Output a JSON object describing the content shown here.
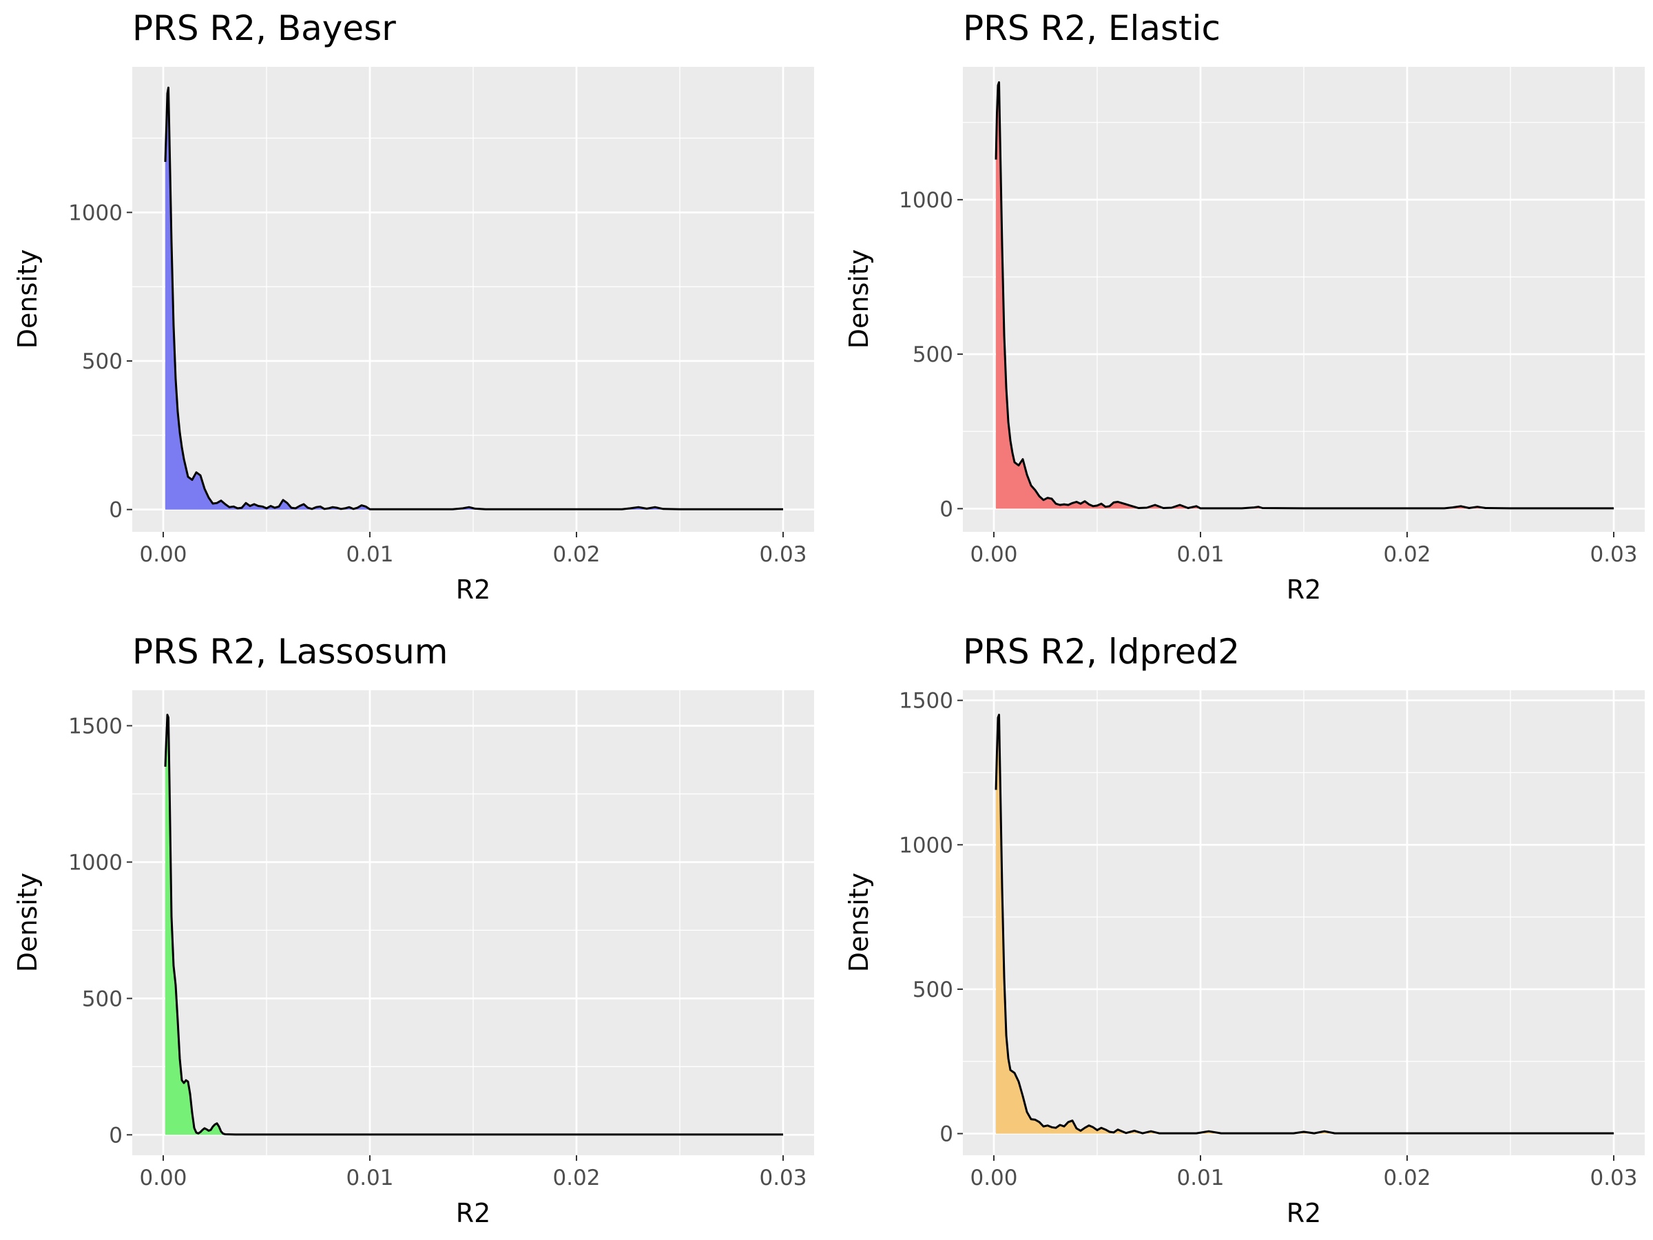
{
  "chart_data": [
    {
      "type": "area",
      "title": "PRS R2, Bayesr",
      "xlabel": "R2",
      "ylabel": "Density",
      "xlim": [
        -0.0015,
        0.0315
      ],
      "ylim": [
        -75,
        1490
      ],
      "xticks": [
        "0.00",
        "0.01",
        "0.02",
        "0.03"
      ],
      "xtick_values": [
        0,
        0.01,
        0.02,
        0.03
      ],
      "yticks": [
        "0",
        "500",
        "1000"
      ],
      "ytick_values": [
        0,
        500,
        1000
      ],
      "grid": true,
      "fill_color": "#7b7bf2",
      "x": [
        0.0001,
        0.00015,
        0.0002,
        0.00025,
        0.0003,
        0.0004,
        0.0005,
        0.0006,
        0.0007,
        0.0008,
        0.0009,
        0.001,
        0.0012,
        0.0014,
        0.0016,
        0.0018,
        0.002,
        0.0022,
        0.0024,
        0.0026,
        0.0028,
        0.003,
        0.0032,
        0.0034,
        0.0036,
        0.0038,
        0.004,
        0.0042,
        0.0044,
        0.0046,
        0.0048,
        0.005,
        0.0052,
        0.0054,
        0.0056,
        0.0058,
        0.006,
        0.0062,
        0.0064,
        0.0066,
        0.0068,
        0.007,
        0.0072,
        0.0074,
        0.0076,
        0.0078,
        0.008,
        0.0082,
        0.0084,
        0.0086,
        0.0088,
        0.009,
        0.0092,
        0.0094,
        0.0096,
        0.0098,
        0.01,
        0.011,
        0.012,
        0.013,
        0.014,
        0.0145,
        0.0148,
        0.0151,
        0.0156,
        0.017,
        0.019,
        0.021,
        0.0222,
        0.0226,
        0.023,
        0.0234,
        0.0238,
        0.0242,
        0.025,
        0.027,
        0.03
      ],
      "y": [
        1170,
        1280,
        1400,
        1420,
        1250,
        900,
        620,
        440,
        330,
        260,
        210,
        170,
        110,
        100,
        125,
        115,
        70,
        40,
        20,
        22,
        30,
        18,
        8,
        10,
        4,
        6,
        22,
        12,
        18,
        12,
        10,
        4,
        12,
        6,
        10,
        32,
        22,
        6,
        4,
        12,
        18,
        6,
        2,
        8,
        10,
        2,
        4,
        8,
        6,
        2,
        4,
        8,
        2,
        6,
        14,
        10,
        1,
        1,
        1,
        1,
        1,
        4,
        8,
        3,
        1,
        1,
        1,
        1,
        1,
        4,
        8,
        3,
        8,
        2,
        1,
        1,
        1
      ]
    },
    {
      "type": "area",
      "title": "PRS R2, Elastic",
      "xlabel": "R2",
      "ylabel": "Density",
      "xlim": [
        -0.0015,
        0.0315
      ],
      "ylim": [
        -75,
        1430
      ],
      "xticks": [
        "0.00",
        "0.01",
        "0.02",
        "0.03"
      ],
      "xtick_values": [
        0,
        0.01,
        0.02,
        0.03
      ],
      "yticks": [
        "0",
        "500",
        "1000"
      ],
      "ytick_values": [
        0,
        500,
        1000
      ],
      "grid": true,
      "fill_color": "#f47a7a",
      "x": [
        0.0001,
        0.00015,
        0.0002,
        0.00025,
        0.0003,
        0.0004,
        0.0005,
        0.0006,
        0.0007,
        0.0008,
        0.0009,
        0.001,
        0.0012,
        0.0014,
        0.0016,
        0.0018,
        0.002,
        0.0022,
        0.0024,
        0.0026,
        0.0028,
        0.003,
        0.0032,
        0.0034,
        0.0036,
        0.0038,
        0.004,
        0.0042,
        0.0044,
        0.0046,
        0.0048,
        0.005,
        0.0052,
        0.0054,
        0.0056,
        0.0058,
        0.006,
        0.0062,
        0.0064,
        0.0066,
        0.0068,
        0.007,
        0.0074,
        0.0078,
        0.0082,
        0.0086,
        0.009,
        0.0094,
        0.0098,
        0.01,
        0.011,
        0.012,
        0.0126,
        0.0128,
        0.013,
        0.015,
        0.018,
        0.021,
        0.0218,
        0.0222,
        0.0226,
        0.023,
        0.0234,
        0.0238,
        0.025,
        0.028,
        0.03
      ],
      "y": [
        1130,
        1280,
        1370,
        1380,
        1200,
        850,
        560,
        390,
        280,
        220,
        180,
        150,
        140,
        160,
        110,
        75,
        60,
        40,
        28,
        35,
        32,
        16,
        12,
        14,
        12,
        18,
        22,
        16,
        24,
        14,
        8,
        10,
        16,
        6,
        8,
        20,
        22,
        18,
        14,
        10,
        6,
        2,
        3,
        12,
        2,
        3,
        12,
        2,
        8,
        1,
        1,
        1,
        4,
        6,
        2,
        1,
        1,
        1,
        1,
        4,
        8,
        2,
        6,
        2,
        1,
        1,
        1
      ]
    },
    {
      "type": "area",
      "title": "PRS R2, Lassosum",
      "xlabel": "R2",
      "ylabel": "Density",
      "xlim": [
        -0.0015,
        0.0315
      ],
      "ylim": [
        -75,
        1630
      ],
      "xticks": [
        "0.00",
        "0.01",
        "0.02",
        "0.03"
      ],
      "xtick_values": [
        0,
        0.01,
        0.02,
        0.03
      ],
      "yticks": [
        "0",
        "500",
        "1000",
        "1500"
      ],
      "ytick_values": [
        0,
        500,
        1000,
        1500
      ],
      "grid": true,
      "fill_color": "#77f077",
      "x": [
        0.0001,
        0.00015,
        0.0002,
        0.00025,
        0.0003,
        0.00035,
        0.0004,
        0.0005,
        0.0006,
        0.0007,
        0.0008,
        0.0009,
        0.001,
        0.0011,
        0.0012,
        0.0013,
        0.0014,
        0.0015,
        0.0016,
        0.0017,
        0.0018,
        0.0019,
        0.002,
        0.0021,
        0.0022,
        0.0023,
        0.0024,
        0.0025,
        0.0026,
        0.0027,
        0.0028,
        0.0029,
        0.003,
        0.0035,
        0.004,
        0.01,
        0.02,
        0.03
      ],
      "y": [
        1350,
        1450,
        1540,
        1530,
        1300,
        1050,
        800,
        620,
        550,
        420,
        280,
        200,
        190,
        200,
        195,
        150,
        80,
        25,
        8,
        5,
        10,
        18,
        24,
        20,
        15,
        18,
        30,
        38,
        42,
        30,
        12,
        4,
        2,
        1,
        1,
        1,
        1,
        1
      ]
    },
    {
      "type": "area",
      "title": "PRS R2, ldpred2",
      "xlabel": "R2",
      "ylabel": "Density",
      "xlim": [
        -0.0015,
        0.0315
      ],
      "ylim": [
        -75,
        1535
      ],
      "xticks": [
        "0.00",
        "0.01",
        "0.02",
        "0.03"
      ],
      "xtick_values": [
        0,
        0.01,
        0.02,
        0.03
      ],
      "yticks": [
        "0",
        "500",
        "1000",
        "1500"
      ],
      "ytick_values": [
        0,
        500,
        1000,
        1500
      ],
      "grid": true,
      "fill_color": "#f5c87a",
      "x": [
        0.0001,
        0.00015,
        0.0002,
        0.00025,
        0.0003,
        0.0004,
        0.0005,
        0.0006,
        0.0007,
        0.0008,
        0.0009,
        0.001,
        0.0012,
        0.0014,
        0.0016,
        0.0018,
        0.002,
        0.0022,
        0.0024,
        0.0026,
        0.0028,
        0.003,
        0.0032,
        0.0034,
        0.0036,
        0.0038,
        0.004,
        0.0042,
        0.0044,
        0.0046,
        0.0048,
        0.005,
        0.0052,
        0.0054,
        0.0056,
        0.0058,
        0.006,
        0.0064,
        0.0068,
        0.0072,
        0.0076,
        0.008,
        0.009,
        0.0098,
        0.0104,
        0.011,
        0.013,
        0.0145,
        0.015,
        0.0155,
        0.016,
        0.0165,
        0.018,
        0.022,
        0.026,
        0.03
      ],
      "y": [
        1190,
        1320,
        1440,
        1450,
        1250,
        850,
        540,
        340,
        260,
        220,
        215,
        210,
        180,
        130,
        75,
        50,
        48,
        40,
        25,
        28,
        22,
        20,
        30,
        25,
        40,
        45,
        18,
        10,
        20,
        28,
        22,
        12,
        20,
        14,
        6,
        4,
        14,
        2,
        10,
        1,
        8,
        1,
        1,
        1,
        8,
        1,
        1,
        1,
        6,
        1,
        8,
        1,
        1,
        1,
        1,
        1
      ]
    }
  ]
}
